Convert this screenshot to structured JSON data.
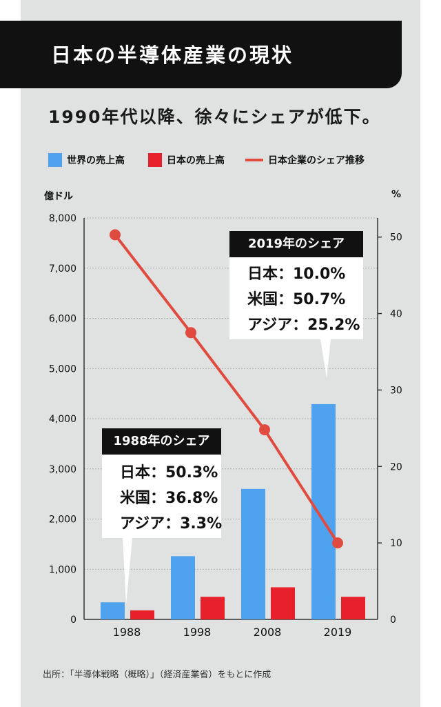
{
  "title": "日本の半導体産業の現状",
  "subtitle": "1990年代以降、徐々にシェアが低下。",
  "legend": {
    "world": "世界の売上高",
    "japan": "日本の売上高",
    "share": "日本企業のシェア推移"
  },
  "units": {
    "left": "億ドル",
    "right": "%"
  },
  "colors": {
    "world": "#4fa3ee",
    "japan": "#e8202c",
    "share": "#e04a3f",
    "panel": "#dfe2e1",
    "title_bg": "#111111"
  },
  "callout_1988": {
    "heading": "1988年のシェア",
    "rows": [
      "日本：50.3%",
      "米国：36.8%",
      "アジア：3.3%"
    ]
  },
  "callout_2019": {
    "heading": "2019年のシェア",
    "rows": [
      "日本：10.0%",
      "米国：50.7%",
      "アジア：25.2%"
    ]
  },
  "source": "出所：「半導体戦略（概略）」（経済産業省）をもとに作成",
  "chart_data": {
    "type": "bar",
    "categories": [
      "1988",
      "1998",
      "2008",
      "2019"
    ],
    "series": [
      {
        "name": "世界の売上高",
        "type": "bar",
        "axis": "left",
        "values": [
          340,
          1260,
          2600,
          4290
        ]
      },
      {
        "name": "日本の売上高",
        "type": "bar",
        "axis": "left",
        "values": [
          180,
          450,
          640,
          450
        ]
      },
      {
        "name": "日本企業のシェア推移",
        "type": "line",
        "axis": "right",
        "values": [
          50.3,
          37.5,
          24.8,
          10.0
        ]
      }
    ],
    "ylim_left": [
      0,
      8000
    ],
    "yticks_left": [
      "0",
      "1,000",
      "2,000",
      "3,000",
      "4,000",
      "5,000",
      "6,000",
      "7,000",
      "8,000"
    ],
    "ylim_right": [
      0,
      52.5
    ],
    "yticks_right": [
      "0",
      "10",
      "20",
      "30",
      "40",
      "50"
    ],
    "grid": "horizontal dashed",
    "legend_position": "top"
  }
}
